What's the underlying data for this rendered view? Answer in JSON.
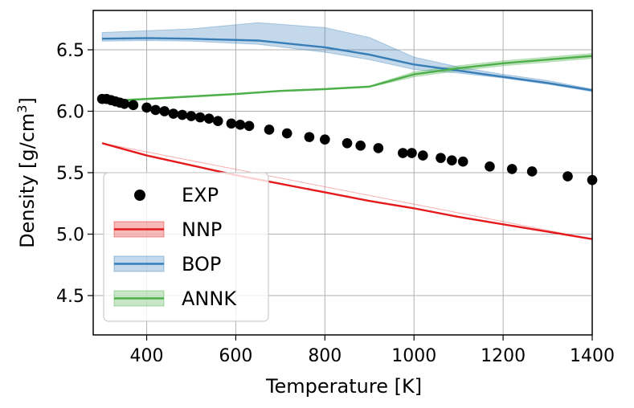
{
  "chart_data": {
    "type": "line",
    "xlabel": "Temperature [K]",
    "ylabel_text": "Density [g/cm",
    "ylabel_sup": "3",
    "ylabel_close": "]",
    "xlim": [
      280,
      1400
    ],
    "ylim": [
      4.18,
      6.82
    ],
    "xticks": [
      400,
      600,
      800,
      1000,
      1200,
      1400
    ],
    "yticks": [
      4.5,
      5.0,
      5.5,
      6.0,
      6.5
    ],
    "xtick_labels": [
      "400",
      "600",
      "800",
      "1000",
      "1200",
      "1400"
    ],
    "ytick_labels": [
      "4.5",
      "5.0",
      "5.5",
      "6.0",
      "6.5"
    ],
    "grid": true,
    "legend_position": "lower-left",
    "legend_entries": [
      "EXP",
      "NNP",
      "BOP",
      "ANNK"
    ],
    "series": [
      {
        "name": "EXP",
        "kind": "scatter",
        "color": "#000000",
        "points": [
          [
            300,
            6.1
          ],
          [
            310,
            6.1
          ],
          [
            320,
            6.09
          ],
          [
            330,
            6.08
          ],
          [
            340,
            6.07
          ],
          [
            350,
            6.06
          ],
          [
            370,
            6.05
          ],
          [
            400,
            6.03
          ],
          [
            420,
            6.01
          ],
          [
            440,
            6.0
          ],
          [
            460,
            5.98
          ],
          [
            480,
            5.97
          ],
          [
            500,
            5.96
          ],
          [
            520,
            5.95
          ],
          [
            540,
            5.94
          ],
          [
            560,
            5.92
          ],
          [
            590,
            5.9
          ],
          [
            610,
            5.89
          ],
          [
            630,
            5.88
          ],
          [
            675,
            5.85
          ],
          [
            715,
            5.82
          ],
          [
            765,
            5.79
          ],
          [
            800,
            5.77
          ],
          [
            850,
            5.74
          ],
          [
            880,
            5.72
          ],
          [
            920,
            5.7
          ],
          [
            975,
            5.66
          ],
          [
            995,
            5.66
          ],
          [
            1020,
            5.64
          ],
          [
            1060,
            5.62
          ],
          [
            1085,
            5.6
          ],
          [
            1110,
            5.59
          ],
          [
            1170,
            5.55
          ],
          [
            1220,
            5.53
          ],
          [
            1265,
            5.51
          ],
          [
            1345,
            5.47
          ],
          [
            1400,
            5.44
          ]
        ]
      },
      {
        "name": "NNP",
        "kind": "line",
        "color": "#e41a1c",
        "points": [
          [
            300,
            5.74
          ],
          [
            400,
            5.64
          ],
          [
            500,
            5.56
          ],
          [
            600,
            5.48
          ],
          [
            700,
            5.41
          ],
          [
            800,
            5.34
          ],
          [
            900,
            5.27
          ],
          [
            1000,
            5.21
          ],
          [
            1100,
            5.14
          ],
          [
            1200,
            5.08
          ],
          [
            1300,
            5.02
          ],
          [
            1400,
            4.96
          ]
        ],
        "band_lower": [
          [
            300,
            5.74
          ],
          [
            1400,
            4.96
          ]
        ],
        "band_upper": [
          [
            300,
            5.74
          ],
          [
            1400,
            4.96
          ]
        ]
      },
      {
        "name": "BOP",
        "kind": "line",
        "color": "#377eb8",
        "points": [
          [
            300,
            6.59
          ],
          [
            400,
            6.595
          ],
          [
            500,
            6.59
          ],
          [
            650,
            6.575
          ],
          [
            800,
            6.52
          ],
          [
            900,
            6.46
          ],
          [
            1000,
            6.38
          ],
          [
            1100,
            6.33
          ],
          [
            1200,
            6.28
          ],
          [
            1300,
            6.23
          ],
          [
            1400,
            6.17
          ]
        ],
        "band_lower": [
          [
            300,
            6.57
          ],
          [
            400,
            6.575
          ],
          [
            500,
            6.57
          ],
          [
            650,
            6.545
          ],
          [
            800,
            6.48
          ],
          [
            900,
            6.42
          ],
          [
            1000,
            6.34
          ],
          [
            1100,
            6.31
          ],
          [
            1200,
            6.27
          ],
          [
            1300,
            6.22
          ],
          [
            1400,
            6.16
          ]
        ],
        "band_upper": [
          [
            300,
            6.64
          ],
          [
            400,
            6.655
          ],
          [
            500,
            6.67
          ],
          [
            650,
            6.72
          ],
          [
            800,
            6.68
          ],
          [
            900,
            6.6
          ],
          [
            1000,
            6.44
          ],
          [
            1100,
            6.36
          ],
          [
            1200,
            6.3
          ],
          [
            1300,
            6.25
          ],
          [
            1400,
            6.18
          ]
        ]
      },
      {
        "name": "ANNK",
        "kind": "line",
        "color": "#4daf4a",
        "points": [
          [
            300,
            6.08
          ],
          [
            400,
            6.1
          ],
          [
            500,
            6.12
          ],
          [
            600,
            6.14
          ],
          [
            700,
            6.165
          ],
          [
            800,
            6.18
          ],
          [
            900,
            6.2
          ],
          [
            1000,
            6.3
          ],
          [
            1100,
            6.35
          ],
          [
            1200,
            6.39
          ],
          [
            1300,
            6.42
          ],
          [
            1400,
            6.45
          ]
        ],
        "band_lower": [
          [
            300,
            6.07
          ],
          [
            400,
            6.095
          ],
          [
            500,
            6.115
          ],
          [
            600,
            6.135
          ],
          [
            700,
            6.16
          ],
          [
            800,
            6.175
          ],
          [
            900,
            6.195
          ],
          [
            1000,
            6.28
          ],
          [
            1100,
            6.33
          ],
          [
            1200,
            6.37
          ],
          [
            1300,
            6.4
          ],
          [
            1400,
            6.43
          ]
        ],
        "band_upper": [
          [
            300,
            6.09
          ],
          [
            400,
            6.105
          ],
          [
            500,
            6.125
          ],
          [
            600,
            6.145
          ],
          [
            700,
            6.17
          ],
          [
            800,
            6.185
          ],
          [
            900,
            6.205
          ],
          [
            1000,
            6.32
          ],
          [
            1100,
            6.37
          ],
          [
            1200,
            6.41
          ],
          [
            1300,
            6.44
          ],
          [
            1400,
            6.47
          ]
        ]
      }
    ]
  }
}
